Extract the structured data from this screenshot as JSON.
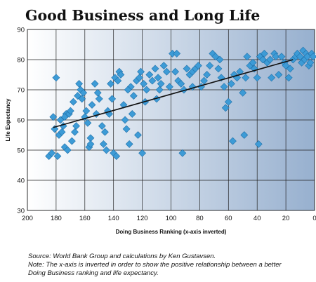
{
  "title": "Good Business and Long Life",
  "notes": {
    "source": "Source: World Bank Group and calculations by Ken Gustavsen.",
    "note_line1": "Note: The x-axis is inverted in order to show the positive relationship between a better",
    "note_line2": "Doing Business ranking and life expectancy."
  },
  "colors": {
    "marker": "#3d9bd6",
    "marker_edge": "#1f6fa8",
    "trend": "#111111",
    "bg_left": "#ffffff",
    "bg_right": "#97b0cf"
  },
  "chart_data": {
    "type": "scatter",
    "title": "Good Business and Long Life",
    "xlabel": "Doing Business Ranking (x-axis inverted)",
    "ylabel": "Life Expectancy",
    "xlim": [
      200,
      0
    ],
    "ylim": [
      30,
      90
    ],
    "x_inverted": true,
    "x_ticks": [
      200,
      180,
      160,
      140,
      120,
      100,
      80,
      60,
      40,
      20,
      0
    ],
    "y_ticks": [
      30,
      40,
      50,
      60,
      70,
      80,
      90
    ],
    "grid": true,
    "legend": "none",
    "trendline": {
      "x": [
        182,
        15
      ],
      "y": [
        57.5,
        80
      ]
    },
    "points": [
      [
        185,
        48
      ],
      [
        183,
        49
      ],
      [
        179,
        48
      ],
      [
        181,
        57
      ],
      [
        182,
        61
      ],
      [
        180,
        74
      ],
      [
        178,
        55
      ],
      [
        176,
        56
      ],
      [
        175,
        58
      ],
      [
        177,
        60
      ],
      [
        173,
        62
      ],
      [
        171,
        62
      ],
      [
        170,
        63
      ],
      [
        174,
        51
      ],
      [
        172,
        50
      ],
      [
        169,
        53
      ],
      [
        167,
        56
      ],
      [
        166,
        58
      ],
      [
        168,
        66
      ],
      [
        165,
        68
      ],
      [
        163,
        70
      ],
      [
        164,
        72
      ],
      [
        161,
        69
      ],
      [
        162,
        67
      ],
      [
        159,
        63
      ],
      [
        160,
        61
      ],
      [
        158,
        59
      ],
      [
        157,
        51
      ],
      [
        156,
        54
      ],
      [
        155,
        65
      ],
      [
        153,
        72
      ],
      [
        151,
        69
      ],
      [
        150,
        67
      ],
      [
        152,
        62
      ],
      [
        148,
        58
      ],
      [
        146,
        56
      ],
      [
        147,
        52
      ],
      [
        145,
        50
      ],
      [
        143,
        62
      ],
      [
        141,
        67
      ],
      [
        142,
        72
      ],
      [
        139,
        74
      ],
      [
        137,
        73
      ],
      [
        140,
        49
      ],
      [
        138,
        48
      ],
      [
        136,
        76
      ],
      [
        135,
        75
      ],
      [
        133,
        65
      ],
      [
        131,
        57
      ],
      [
        132,
        60
      ],
      [
        129,
        52
      ],
      [
        127,
        62
      ],
      [
        126,
        68
      ],
      [
        128,
        71
      ],
      [
        124,
        73
      ],
      [
        122,
        74
      ],
      [
        121,
        76
      ],
      [
        119,
        72
      ],
      [
        117,
        70
      ],
      [
        118,
        66
      ],
      [
        123,
        55
      ],
      [
        120,
        49
      ],
      [
        115,
        75
      ],
      [
        113,
        73
      ],
      [
        111,
        77
      ],
      [
        109,
        74
      ],
      [
        107,
        72
      ],
      [
        105,
        78
      ],
      [
        103,
        76
      ],
      [
        101,
        71
      ],
      [
        99,
        82
      ],
      [
        97,
        76
      ],
      [
        95,
        73
      ],
      [
        93,
        72
      ],
      [
        91,
        70
      ],
      [
        92,
        49
      ],
      [
        89,
        77
      ],
      [
        87,
        75
      ],
      [
        85,
        76
      ],
      [
        83,
        77
      ],
      [
        81,
        78
      ],
      [
        79,
        71
      ],
      [
        77,
        73
      ],
      [
        75,
        75
      ],
      [
        73,
        78
      ],
      [
        71,
        82
      ],
      [
        69,
        81
      ],
      [
        67,
        77
      ],
      [
        65,
        74
      ],
      [
        63,
        71
      ],
      [
        62,
        64
      ],
      [
        60,
        66
      ],
      [
        58,
        72
      ],
      [
        57,
        53
      ],
      [
        56,
        75
      ],
      [
        54,
        74
      ],
      [
        52,
        76
      ],
      [
        50,
        69
      ],
      [
        49,
        55
      ],
      [
        47,
        81
      ],
      [
        45,
        78
      ],
      [
        43,
        79
      ],
      [
        42,
        77
      ],
      [
        40,
        74
      ],
      [
        39,
        52
      ],
      [
        38,
        81
      ],
      [
        36,
        80
      ],
      [
        35,
        82
      ],
      [
        33,
        79
      ],
      [
        31,
        80
      ],
      [
        30,
        74
      ],
      [
        28,
        82
      ],
      [
        27,
        81
      ],
      [
        25,
        75
      ],
      [
        23,
        81
      ],
      [
        21,
        79
      ],
      [
        20,
        78
      ],
      [
        18,
        74
      ],
      [
        17,
        77
      ],
      [
        15,
        80
      ],
      [
        13,
        81
      ],
      [
        12,
        82
      ],
      [
        10,
        81
      ],
      [
        9,
        79
      ],
      [
        8,
        83
      ],
      [
        7,
        80
      ],
      [
        6,
        82
      ],
      [
        5,
        81
      ],
      [
        4,
        78
      ],
      [
        3,
        79
      ],
      [
        2,
        82
      ],
      [
        1,
        81
      ],
      [
        85,
        71
      ],
      [
        110,
        67
      ],
      [
        130,
        70
      ],
      [
        144,
        63
      ],
      [
        156,
        52
      ],
      [
        174,
        61
      ],
      [
        48,
        74
      ],
      [
        66,
        80
      ],
      [
        96,
        82
      ],
      [
        108,
        70
      ]
    ]
  }
}
